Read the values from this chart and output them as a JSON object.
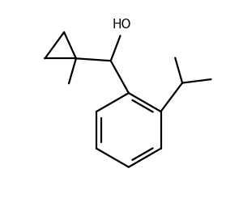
{
  "background_color": "#ffffff",
  "line_color": "#000000",
  "line_width": 1.6,
  "OH_label": "HO",
  "OH_fontsize": 11,
  "figsize": [
    3.0,
    2.45
  ],
  "dpi": 100,
  "xlim": [
    0,
    10
  ],
  "ylim": [
    0,
    8.2
  ]
}
